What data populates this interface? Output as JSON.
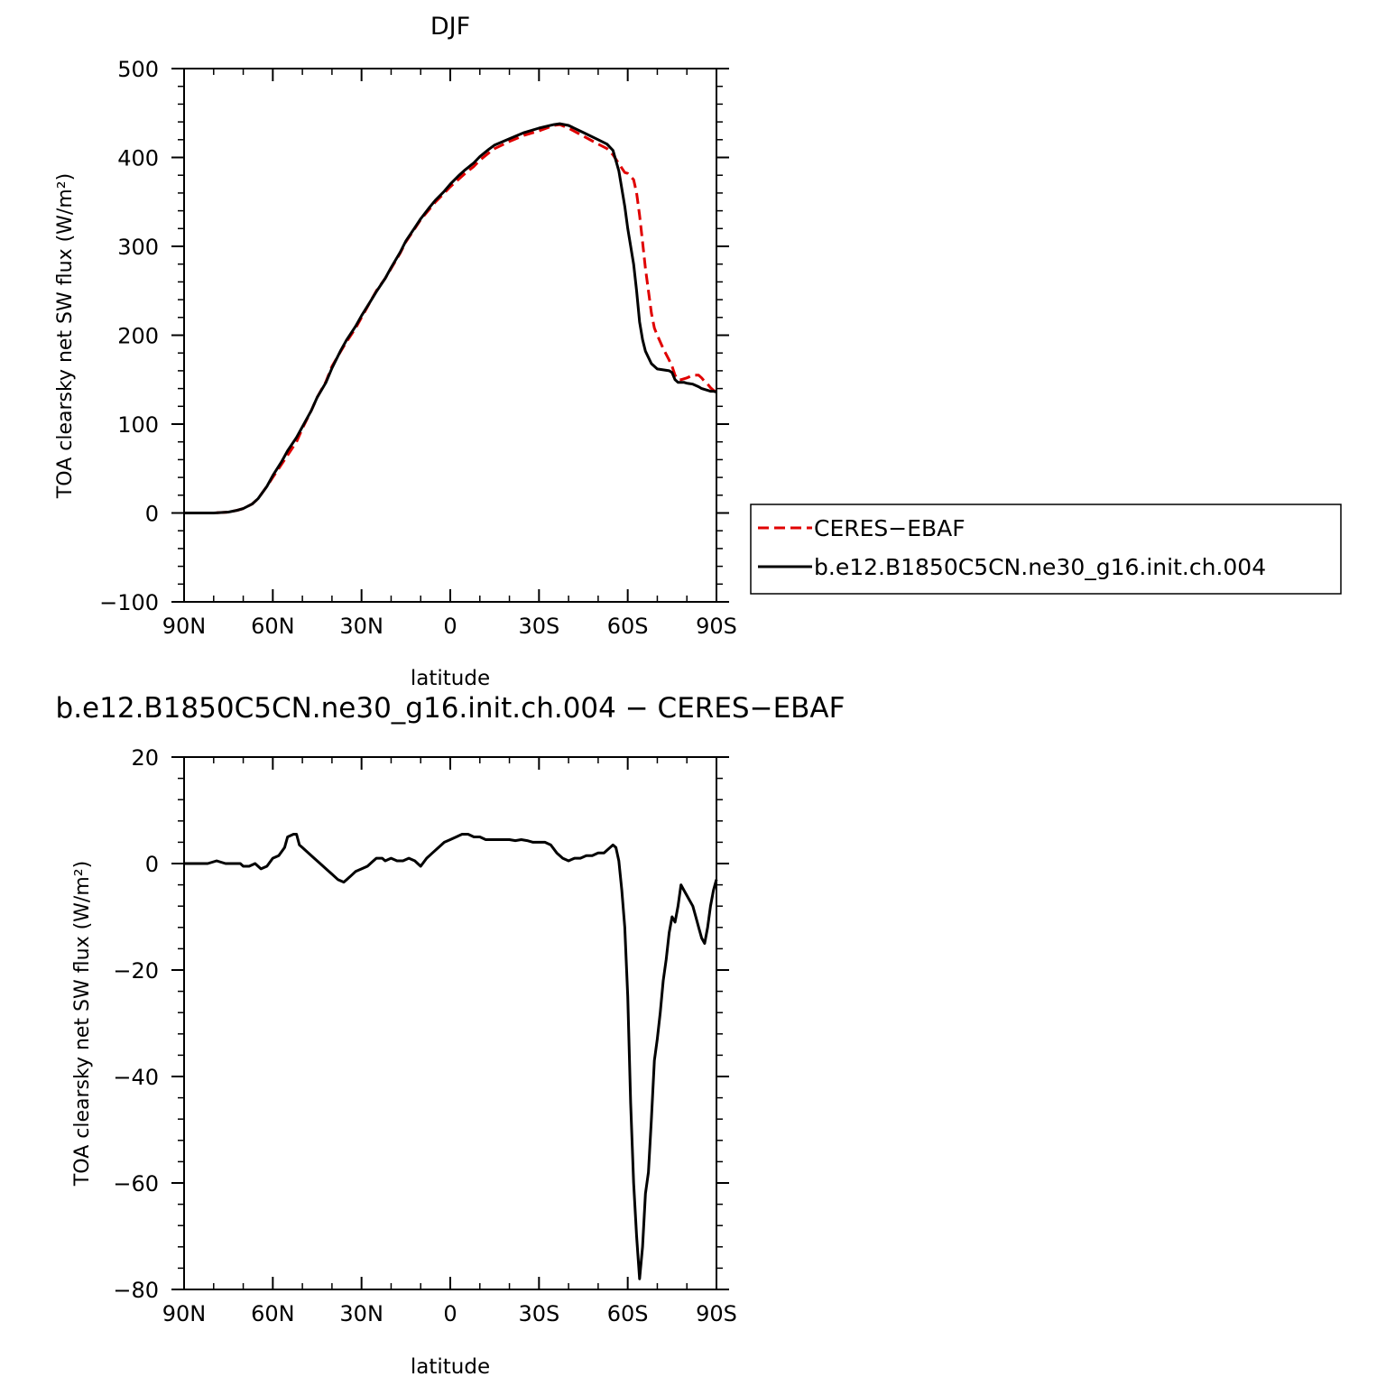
{
  "chart_data": [
    {
      "type": "line",
      "title": "DJF",
      "xlabel": "latitude",
      "ylabel": "TOA clearsky net SW flux (W/m²)",
      "xlim": [
        90,
        -90
      ],
      "x_tick_values": [
        90,
        60,
        30,
        0,
        -30,
        -60,
        -90
      ],
      "x_tick_labels": [
        "90N",
        "60N",
        "30N",
        "0",
        "30S",
        "60S",
        "90S"
      ],
      "ylim": [
        -100,
        500
      ],
      "y_tick_values": [
        -100,
        0,
        100,
        200,
        300,
        400,
        500
      ],
      "y_tick_labels": [
        "−100",
        "0",
        "100",
        "200",
        "300",
        "400",
        "500"
      ],
      "legend_placement": "right",
      "series": [
        {
          "name": "CERES−EBAF",
          "color": "#e00000",
          "dash": "dashed",
          "x": [
            90,
            85,
            80,
            75,
            72,
            70,
            67,
            65,
            62,
            60,
            57,
            55,
            52,
            50,
            47,
            45,
            42,
            40,
            37,
            35,
            32,
            30,
            27,
            25,
            22,
            20,
            17,
            15,
            12,
            10,
            7,
            5,
            2,
            0,
            -3,
            -5,
            -8,
            -10,
            -13,
            -15,
            -20,
            -25,
            -30,
            -35,
            -37,
            -40,
            -45,
            -50,
            -53,
            -55,
            -57,
            -59,
            -60,
            -62,
            -63,
            -64,
            -65,
            -66,
            -67,
            -68,
            -69,
            -70,
            -72,
            -74,
            -75,
            -76,
            -77,
            -78,
            -79,
            -80,
            -82,
            -84,
            -85,
            -86,
            -87,
            -88,
            -89,
            -90
          ],
          "y": [
            0,
            0,
            0,
            1,
            3,
            5,
            10,
            16,
            30,
            40,
            55,
            65,
            80,
            95,
            115,
            130,
            148,
            165,
            182,
            193,
            208,
            220,
            238,
            250,
            264,
            275,
            292,
            305,
            320,
            330,
            342,
            350,
            360,
            367,
            376,
            382,
            390,
            397,
            405,
            410,
            418,
            425,
            430,
            436,
            437,
            433,
            424,
            415,
            410,
            403,
            393,
            383,
            382,
            375,
            360,
            335,
            305,
            275,
            250,
            225,
            208,
            200,
            185,
            172,
            165,
            155,
            150,
            150,
            151,
            152,
            155,
            155,
            152,
            148,
            145,
            141,
            138,
            136
          ]
        },
        {
          "name": "b.e12.B1850C5CN.ne30_g16.init.ch.004",
          "color": "#000000",
          "dash": "solid",
          "x": [
            90,
            85,
            80,
            75,
            72,
            70,
            67,
            65,
            62,
            60,
            57,
            55,
            52,
            50,
            47,
            45,
            42,
            40,
            37,
            35,
            32,
            30,
            27,
            25,
            22,
            20,
            17,
            15,
            12,
            10,
            7,
            5,
            2,
            0,
            -3,
            -5,
            -8,
            -10,
            -13,
            -15,
            -20,
            -25,
            -30,
            -35,
            -37,
            -40,
            -45,
            -50,
            -53,
            -55,
            -57,
            -59,
            -60,
            -62,
            -63,
            -64,
            -65,
            -66,
            -67,
            -68,
            -69,
            -70,
            -72,
            -74,
            -75,
            -76,
            -77,
            -78,
            -79,
            -80,
            -82,
            -84,
            -85,
            -86,
            -87,
            -88,
            -89,
            -90
          ],
          "y": [
            0,
            0,
            0,
            1,
            3,
            5,
            10,
            16,
            30,
            42,
            58,
            70,
            85,
            97,
            115,
            130,
            147,
            163,
            183,
            195,
            210,
            222,
            238,
            249,
            264,
            276,
            293,
            306,
            321,
            331,
            344,
            352,
            362,
            370,
            380,
            386,
            394,
            401,
            409,
            414,
            421,
            428,
            433,
            437,
            438,
            436,
            428,
            420,
            415,
            408,
            385,
            345,
            320,
            280,
            250,
            215,
            195,
            182,
            175,
            168,
            165,
            162,
            161,
            160,
            158,
            150,
            147,
            147,
            147,
            146,
            145,
            142,
            140,
            139,
            138,
            137,
            137,
            136
          ]
        }
      ]
    },
    {
      "type": "line",
      "title": "b.e12.B1850C5CN.ne30_g16.init.ch.004 − CERES−EBAF",
      "xlabel": "latitude",
      "ylabel": "TOA clearsky net SW flux (W/m²)",
      "xlim": [
        90,
        -90
      ],
      "x_tick_values": [
        90,
        60,
        30,
        0,
        -30,
        -60,
        -90
      ],
      "x_tick_labels": [
        "90N",
        "60N",
        "30N",
        "0",
        "30S",
        "60S",
        "90S"
      ],
      "ylim": [
        -80,
        20
      ],
      "y_tick_values": [
        -80,
        -60,
        -40,
        -20,
        0,
        20
      ],
      "y_tick_labels": [
        "−80",
        "−60",
        "−40",
        "−20",
        "0",
        "20"
      ],
      "series": [
        {
          "name": "",
          "color": "#000000",
          "dash": "solid",
          "x": [
            90,
            85,
            82,
            79,
            76,
            73,
            71,
            70,
            68,
            66,
            64,
            62,
            60,
            58,
            56,
            55,
            53,
            52,
            51,
            50,
            48,
            46,
            44,
            42,
            40,
            38,
            36,
            35,
            34,
            32,
            30,
            28,
            27,
            26,
            25,
            23,
            22,
            20,
            18,
            16,
            14,
            12,
            11,
            10,
            8,
            6,
            4,
            2,
            0,
            -2,
            -4,
            -6,
            -8,
            -10,
            -12,
            -14,
            -16,
            -18,
            -20,
            -22,
            -24,
            -26,
            -28,
            -30,
            -32,
            -34,
            -36,
            -38,
            -40,
            -42,
            -44,
            -46,
            -48,
            -50,
            -52,
            -53,
            -54,
            -55,
            -56,
            -57,
            -58,
            -59,
            -60,
            -61,
            -62,
            -63,
            -64,
            -65,
            -66,
            -67,
            -68,
            -69,
            -70,
            -71,
            -72,
            -73,
            -74,
            -75,
            -76,
            -77,
            -78,
            -79,
            -80,
            -81,
            -82,
            -83,
            -84,
            -85,
            -86,
            -87,
            -88,
            -89,
            -90
          ],
          "y": [
            0,
            0,
            0,
            0.5,
            0,
            0,
            0,
            -0.5,
            -0.5,
            0,
            -1,
            -0.5,
            1,
            1.5,
            3,
            5,
            5.5,
            5.5,
            3.5,
            3,
            2,
            1,
            0,
            -1,
            -2,
            -3,
            -3.5,
            -3,
            -2.5,
            -1.5,
            -1,
            -0.5,
            0,
            0.5,
            1,
            1,
            0.5,
            1,
            0.5,
            0.5,
            1,
            0.5,
            0,
            -0.5,
            1,
            2,
            3,
            4,
            4.5,
            5,
            5.5,
            5.5,
            5,
            5,
            4.5,
            4.5,
            4.5,
            4.5,
            4.5,
            4.3,
            4.5,
            4.3,
            4,
            4,
            4,
            3.5,
            2,
            1,
            0.5,
            1,
            1,
            1.5,
            1.5,
            2,
            2,
            2.5,
            3,
            3.5,
            3,
            0.5,
            -5,
            -12,
            -25,
            -45,
            -60,
            -70,
            -78,
            -72,
            -62,
            -58,
            -48,
            -37,
            -33,
            -28,
            -22,
            -18,
            -13,
            -10,
            -11,
            -8,
            -4,
            -5,
            -6,
            -7,
            -8,
            -10,
            -12,
            -14,
            -15,
            -12,
            -8,
            -5,
            -3
          ]
        }
      ]
    }
  ]
}
